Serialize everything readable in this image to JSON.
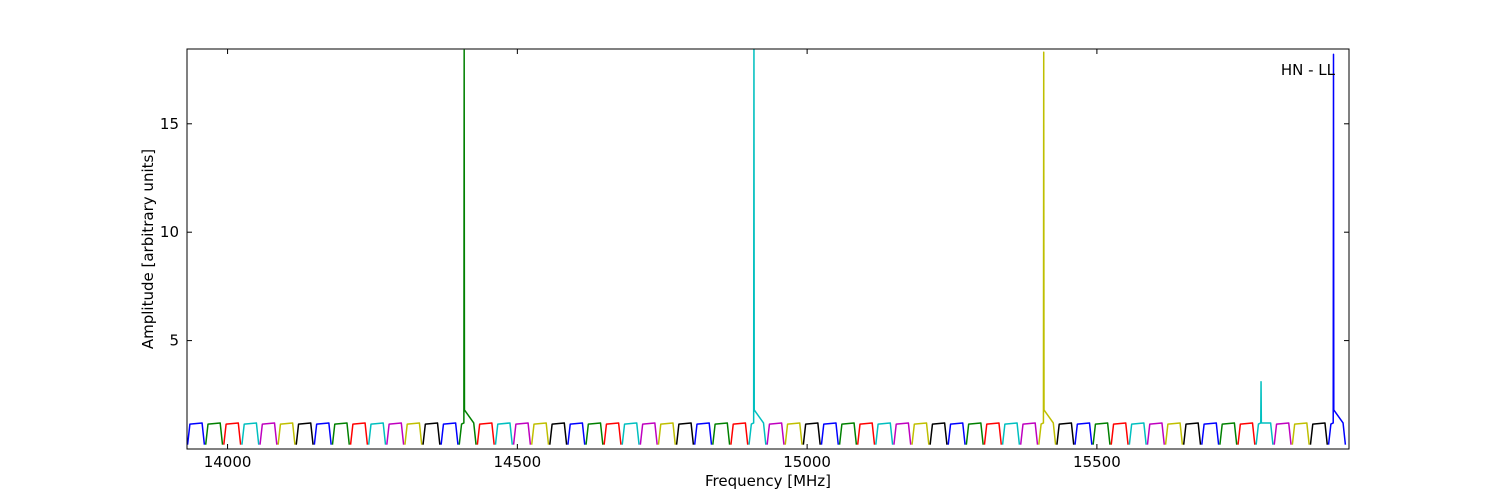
{
  "chart_data": {
    "type": "line",
    "xlabel": "Frequency [MHz]",
    "ylabel": "Amplitude [arbitrary units]",
    "annotation": "HN - LL",
    "xlim": [
      13930,
      15935
    ],
    "ylim": [
      0,
      18.45
    ],
    "xticks": [
      14000,
      14500,
      15000,
      15500
    ],
    "yticks": [
      5,
      10,
      15
    ],
    "series": [
      {
        "color": "#0000ff",
        "x": [
          13931,
          13935,
          13956,
          13960,
          null,
          14149.75,
          14153.75,
          14174.75,
          14178.75,
          null,
          14368.5,
          14372.5,
          14393.5,
          14397.5,
          null,
          14587.25,
          14591.25,
          14612.25,
          14616.25,
          null,
          14806,
          14810,
          14831,
          14835,
          null,
          15024.75,
          15028.75,
          15049.75,
          15053.75,
          null,
          15243.5,
          15247.5,
          15268.5,
          15272.5,
          null,
          15462.25,
          15466.25,
          15487.25,
          15491.25,
          null,
          15681,
          15685,
          15706,
          15710,
          null,
          15899.75,
          15903.75,
          15907.75,
          15908.25,
          15908.75,
          15924.75,
          15928.75
        ],
        "values": [
          0.2,
          1.15,
          1.2,
          0.2,
          null,
          0.2,
          1.15,
          1.2,
          0.2,
          null,
          0.2,
          1.15,
          1.2,
          0.2,
          null,
          0.2,
          1.15,
          1.2,
          0.2,
          null,
          0.2,
          1.15,
          1.2,
          0.2,
          null,
          0.2,
          1.15,
          1.2,
          0.2,
          null,
          0.2,
          1.15,
          1.2,
          0.2,
          null,
          0.2,
          1.15,
          1.2,
          0.2,
          null,
          0.2,
          1.15,
          1.2,
          0.2,
          null,
          0.2,
          1.15,
          1.2,
          18.2,
          1.8,
          1.2,
          0.2
        ]
      },
      {
        "color": "#008000",
        "x": [
          13962.25,
          13966.25,
          13987.25,
          13991.25,
          null,
          14181,
          14185,
          14206,
          14210,
          null,
          14399.75,
          14403.75,
          14407.75,
          14408.25,
          14408.75,
          14424.75,
          14428.75,
          null,
          14618.5,
          14622.5,
          14643.5,
          14647.5,
          null,
          14837.25,
          14841.25,
          14862.25,
          14866.25,
          null,
          15056,
          15060,
          15081,
          15085,
          null,
          15274.75,
          15278.75,
          15299.75,
          15303.75,
          null,
          15493.5,
          15497.5,
          15518.5,
          15522.5,
          null,
          15712.25,
          15716.25,
          15737.25,
          15741.25
        ],
        "values": [
          0.2,
          1.15,
          1.2,
          0.2,
          null,
          0.2,
          1.15,
          1.2,
          0.2,
          null,
          0.2,
          1.15,
          1.2,
          18.4,
          1.8,
          1.2,
          0.2,
          null,
          0.2,
          1.15,
          1.2,
          0.2,
          null,
          0.2,
          1.15,
          1.2,
          0.2,
          null,
          0.2,
          1.15,
          1.2,
          0.2,
          null,
          0.2,
          1.15,
          1.2,
          0.2,
          null,
          0.2,
          1.15,
          1.2,
          0.2,
          null,
          0.2,
          1.15,
          1.2,
          0.2
        ]
      },
      {
        "color": "#ff0000",
        "x": [
          13993.5,
          13997.5,
          14018.5,
          14022.5,
          null,
          14212.25,
          14216.25,
          14237.25,
          14241.25,
          null,
          14431,
          14435,
          14456,
          14460,
          null,
          14649.75,
          14653.75,
          14674.75,
          14678.75,
          null,
          14868.5,
          14872.5,
          14893.5,
          14897.5,
          null,
          15087.25,
          15091.25,
          15112.25,
          15116.25,
          null,
          15306,
          15310,
          15331,
          15335,
          null,
          15524.75,
          15528.75,
          15549.75,
          15553.75,
          null,
          15743.5,
          15747.5,
          15768.5,
          15772.5
        ],
        "values": [
          0.2,
          1.15,
          1.2,
          0.2,
          null,
          0.2,
          1.15,
          1.2,
          0.2,
          null,
          0.2,
          1.15,
          1.2,
          0.2,
          null,
          0.2,
          1.15,
          1.2,
          0.2,
          null,
          0.2,
          1.15,
          1.2,
          0.2,
          null,
          0.2,
          1.15,
          1.2,
          0.2,
          null,
          0.2,
          1.15,
          1.2,
          0.2,
          null,
          0.2,
          1.15,
          1.2,
          0.2,
          null,
          0.2,
          1.15,
          1.2,
          0.2
        ]
      },
      {
        "color": "#00bfbf",
        "x": [
          14024.75,
          14028.75,
          14049.75,
          14053.75,
          null,
          14243.5,
          14247.5,
          14268.5,
          14272.5,
          null,
          14462.25,
          14466.25,
          14487.25,
          14491.25,
          null,
          14681,
          14685,
          14706,
          14710,
          null,
          14899.75,
          14903.75,
          14907.75,
          14908.25,
          14908.75,
          14924.75,
          14928.75,
          null,
          15118.5,
          15122.5,
          15143.5,
          15147.5,
          null,
          15337.25,
          15341.25,
          15362.25,
          15366.25,
          null,
          15556,
          15560,
          15581,
          15585,
          null,
          15774.75,
          15778.75,
          15782.75,
          15783.25,
          15783.75,
          15799.75,
          15803.75
        ],
        "values": [
          0.2,
          1.15,
          1.2,
          0.2,
          null,
          0.2,
          1.15,
          1.2,
          0.2,
          null,
          0.2,
          1.15,
          1.2,
          0.2,
          null,
          0.2,
          1.15,
          1.2,
          0.2,
          null,
          0.2,
          1.15,
          1.2,
          18.5,
          1.8,
          1.2,
          0.2,
          null,
          0.2,
          1.15,
          1.2,
          0.2,
          null,
          0.2,
          1.15,
          1.2,
          0.2,
          null,
          0.2,
          1.15,
          1.2,
          0.2,
          null,
          0.2,
          1.15,
          1.2,
          3.1,
          1.2,
          1.2,
          0.2
        ]
      },
      {
        "color": "#bf00bf",
        "x": [
          14056,
          14060,
          14081,
          14085,
          null,
          14274.75,
          14278.75,
          14299.75,
          14303.75,
          null,
          14493.5,
          14497.5,
          14518.5,
          14522.5,
          null,
          14712.25,
          14716.25,
          14737.25,
          14741.25,
          null,
          14931,
          14935,
          14956,
          14960,
          null,
          15149.75,
          15153.75,
          15174.75,
          15178.75,
          null,
          15368.5,
          15372.5,
          15393.5,
          15397.5,
          null,
          15587.25,
          15591.25,
          15612.25,
          15616.25,
          null,
          15806,
          15810,
          15831,
          15835
        ],
        "values": [
          0.2,
          1.15,
          1.2,
          0.2,
          null,
          0.2,
          1.15,
          1.2,
          0.2,
          null,
          0.2,
          1.15,
          1.2,
          0.2,
          null,
          0.2,
          1.15,
          1.2,
          0.2,
          null,
          0.2,
          1.15,
          1.2,
          0.2,
          null,
          0.2,
          1.15,
          1.2,
          0.2,
          null,
          0.2,
          1.15,
          1.2,
          0.2,
          null,
          0.2,
          1.15,
          1.2,
          0.2,
          null,
          0.2,
          1.15,
          1.2,
          0.2
        ]
      },
      {
        "color": "#bfbf00",
        "x": [
          14087.25,
          14091.25,
          14112.25,
          14116.25,
          null,
          14306,
          14310,
          14331,
          14335,
          null,
          14524.75,
          14528.75,
          14549.75,
          14553.75,
          null,
          14743.5,
          14747.5,
          14768.5,
          14772.5,
          null,
          14962.25,
          14966.25,
          14987.25,
          14991.25,
          null,
          15181,
          15185,
          15206,
          15210,
          null,
          15399.75,
          15403.75,
          15407.75,
          15408.25,
          15408.75,
          15424.75,
          15428.75,
          null,
          15618.5,
          15622.5,
          15643.5,
          15647.5,
          null,
          15837.25,
          15841.25,
          15862.25,
          15866.25
        ],
        "values": [
          0.2,
          1.15,
          1.2,
          0.2,
          null,
          0.2,
          1.15,
          1.2,
          0.2,
          null,
          0.2,
          1.15,
          1.2,
          0.2,
          null,
          0.2,
          1.15,
          1.2,
          0.2,
          null,
          0.2,
          1.15,
          1.2,
          0.2,
          null,
          0.2,
          1.15,
          1.2,
          0.2,
          null,
          0.2,
          1.15,
          1.2,
          18.3,
          1.8,
          1.2,
          0.2,
          null,
          0.2,
          1.15,
          1.2,
          0.2,
          null,
          0.2,
          1.15,
          1.2,
          0.2
        ]
      },
      {
        "color": "#000000",
        "x": [
          14118.5,
          14122.5,
          14143.5,
          14147.5,
          null,
          14337.25,
          14341.25,
          14362.25,
          14366.25,
          null,
          14556,
          14560,
          14581,
          14585,
          null,
          14774.75,
          14778.75,
          14799.75,
          14803.75,
          null,
          14993.5,
          14997.5,
          15018.5,
          15022.5,
          null,
          15212.25,
          15216.25,
          15237.25,
          15241.25,
          null,
          15431,
          15435,
          15456,
          15460,
          null,
          15649.75,
          15653.75,
          15674.75,
          15678.75,
          null,
          15868.5,
          15872.5,
          15893.5,
          15897.5
        ],
        "values": [
          0.2,
          1.15,
          1.2,
          0.2,
          null,
          0.2,
          1.15,
          1.2,
          0.2,
          null,
          0.2,
          1.15,
          1.2,
          0.2,
          null,
          0.2,
          1.15,
          1.2,
          0.2,
          null,
          0.2,
          1.15,
          1.2,
          0.2,
          null,
          0.2,
          1.15,
          1.2,
          0.2,
          null,
          0.2,
          1.15,
          1.2,
          0.2,
          null,
          0.2,
          1.15,
          1.2,
          0.2,
          null,
          0.2,
          1.15,
          1.2,
          0.2
        ]
      }
    ]
  }
}
